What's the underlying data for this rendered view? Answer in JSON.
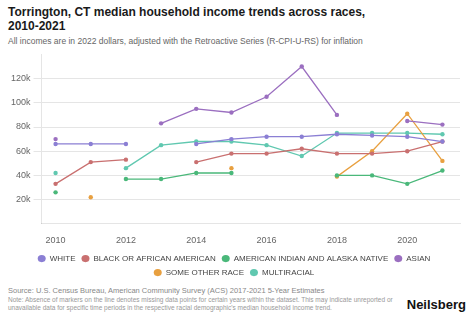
{
  "chart_data": {
    "type": "line",
    "title": "Torrington, CT median household income trends across races,\n2010-2021",
    "subtitle": "All incomes are in 2022 dollars, adjusted with the Retroactive Series (R-CPI-U-RS) for inflation",
    "source": "Source: U.S. Census Bureau, American Community Survey (ACS) 2017-2021 5-Year Estimates",
    "note": "Note: Absence of markers on the line denotes missing data points for certain years within the dataset. This may indicate unreported or unavailable data for specific time periods in the respective racial demographic's median household income trend.",
    "brand": "Neilsberg",
    "x": [
      2010,
      2011,
      2012,
      2013,
      2014,
      2015,
      2016,
      2017,
      2018,
      2019,
      2020,
      2021
    ],
    "series": [
      {
        "name": "WHITE",
        "color": "#8b7fd4",
        "values": [
          66000,
          66000,
          66000,
          null,
          66000,
          70000,
          72000,
          72000,
          74000,
          73000,
          72000,
          68000
        ]
      },
      {
        "name": "BLACK OR AFRICAN AMERICAN",
        "color": "#c97070",
        "values": [
          33000,
          51000,
          53000,
          null,
          51000,
          58000,
          58000,
          62000,
          58000,
          58000,
          60000,
          68000
        ]
      },
      {
        "name": "AMERICAN INDIAN AND ALASKA NATIVE",
        "color": "#4ab87a",
        "values": [
          26000,
          null,
          37000,
          37000,
          42000,
          42000,
          null,
          null,
          40000,
          40000,
          33000,
          44000
        ]
      },
      {
        "name": "ASIAN",
        "color": "#9b6fc0",
        "values": [
          70000,
          null,
          null,
          83000,
          95000,
          92000,
          105000,
          130000,
          90000,
          null,
          85000,
          82000
        ]
      },
      {
        "name": "SOME OTHER RACE",
        "color": "#e8a040",
        "values": [
          null,
          22000,
          null,
          null,
          null,
          46000,
          null,
          null,
          39000,
          60000,
          91000,
          52000
        ]
      },
      {
        "name": "MULTIRACIAL",
        "color": "#60c8b0",
        "values": [
          42000,
          null,
          46000,
          65000,
          68000,
          68000,
          65000,
          56000,
          75000,
          75000,
          75000,
          74000
        ]
      }
    ],
    "xlim": [
      2009.6,
      2021.5
    ],
    "xticks": [
      2010,
      2012,
      2014,
      2016,
      2018,
      2020
    ],
    "ylim": [
      0,
      140000
    ],
    "yticks": [
      {
        "value": 20000,
        "label": "20k"
      },
      {
        "value": 40000,
        "label": "40k"
      },
      {
        "value": 60000,
        "label": "60k"
      },
      {
        "value": 80000,
        "label": "80k"
      },
      {
        "value": 100000,
        "label": "100k"
      },
      {
        "value": 120000,
        "label": "120k"
      }
    ],
    "grid": true,
    "legend": "bottom",
    "marker": "circle"
  }
}
